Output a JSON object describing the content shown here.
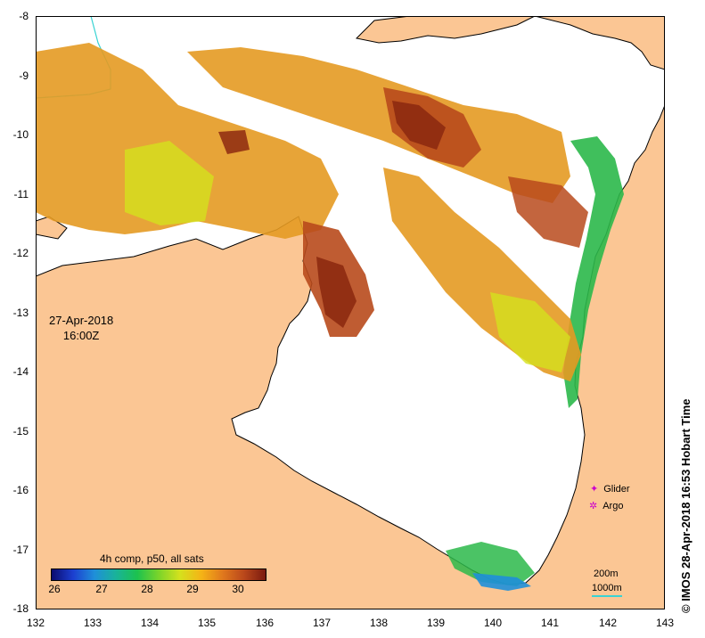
{
  "map": {
    "lon_ticks": [
      "132",
      "133",
      "134",
      "135",
      "136",
      "137",
      "138",
      "139",
      "140",
      "141",
      "142",
      "143"
    ],
    "lat_ticks": [
      "-8",
      "-9",
      "-10",
      "-11",
      "-12",
      "-13",
      "-14",
      "-15",
      "-16",
      "-17",
      "-18"
    ],
    "lon_range": [
      132,
      143
    ],
    "lat_range": [
      -18,
      -8
    ],
    "date": "27-Apr-2018",
    "time": "16:00Z",
    "colors": {
      "land": "#fbc694",
      "ocean": "#ffffff",
      "coast": "#000000",
      "sst_cool": "#2bb84a",
      "sst_mid": "#e49a22",
      "sst_warm": "#b84a1c",
      "sst_hot": "#8d2a10",
      "isobath_1000": "#38d3d3"
    }
  },
  "legend": {
    "glider_label": "Glider",
    "argo_label": "Argo",
    "glider_marker": "✦",
    "argo_marker": "✲",
    "depth_200": "200m",
    "depth_1000": "1000m"
  },
  "colorbar": {
    "title": "4h comp, p50, all sats",
    "ticks": [
      "26",
      "27",
      "28",
      "29",
      "30"
    ],
    "range": [
      25.8,
      30.5
    ]
  },
  "watermark": "© IMOS 28-Apr-2018 16:53 Hobart Time"
}
